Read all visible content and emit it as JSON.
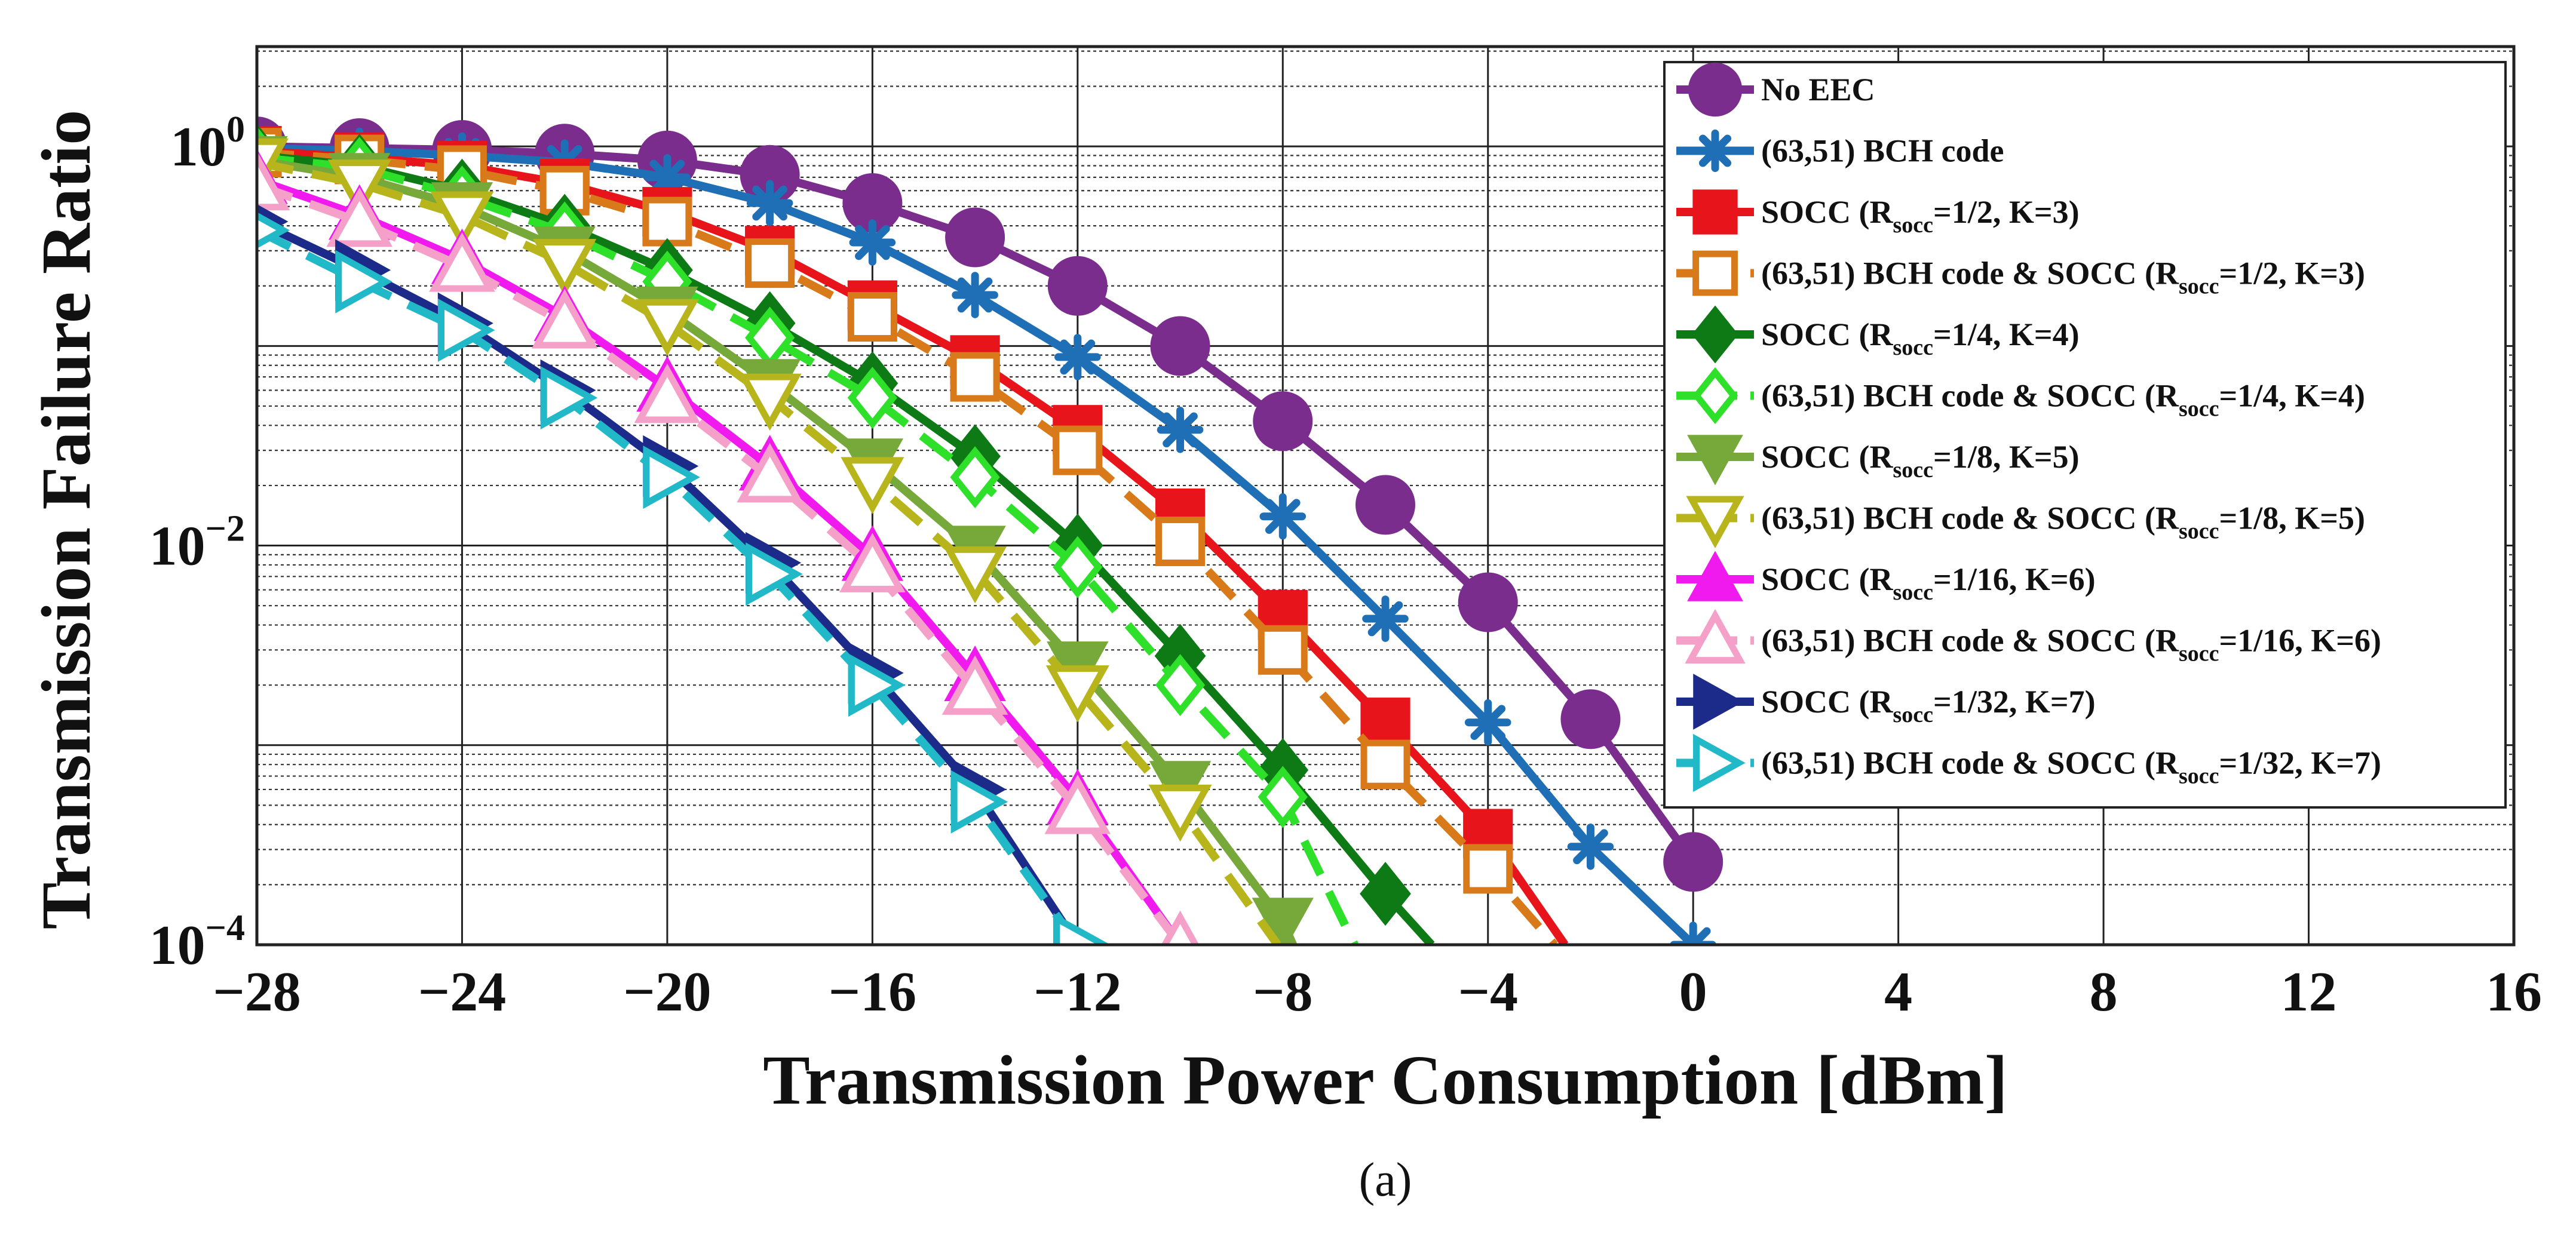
{
  "chart_data": {
    "type": "line",
    "xlabel": "Transmission Power Consumption [dBm]",
    "ylabel": "Transmission Failure Ratio",
    "caption": "(a)",
    "xlim": [
      -28,
      16
    ],
    "ylim_log10": [
      -4,
      0.5
    ],
    "x_ticks": [
      -28,
      -24,
      -20,
      -16,
      -12,
      -8,
      -4,
      0,
      4,
      8,
      12,
      16
    ],
    "x_tick_labels": [
      "−28",
      "−24",
      "−20",
      "−16",
      "−12",
      "−8",
      "−4",
      "0",
      "4",
      "8",
      "12",
      "16"
    ],
    "y_ticks": [
      {
        "base": "10",
        "exp": "0"
      },
      {
        "base": "10",
        "exp": "−2"
      },
      {
        "base": "10",
        "exp": "−4"
      }
    ],
    "grid": true,
    "legend_position": "top-right",
    "series": [
      {
        "name": "No EEC",
        "legend_parts": [
          "No EEC"
        ],
        "color": "#7b2d8e",
        "marker": "circle",
        "dashed": false,
        "x": [
          -28,
          -26,
          -24,
          -22,
          -20,
          -18,
          -16,
          -14,
          -12,
          -10,
          -8,
          -6,
          -4,
          -2,
          0
        ],
        "y": [
          1.0,
          0.98,
          0.96,
          0.92,
          0.85,
          0.72,
          0.52,
          0.35,
          0.2,
          0.1,
          0.042,
          0.016,
          0.0052,
          0.00135,
          0.00026
        ]
      },
      {
        "name": "(63,51) BCH code",
        "legend_parts": [
          "(63,51) BCH code"
        ],
        "color": "#1f6fb6",
        "marker": "asterisk",
        "dashed": false,
        "x": [
          -28,
          -26,
          -24,
          -22,
          -20,
          -18,
          -16,
          -14,
          -12,
          -10,
          -8,
          -6,
          -4,
          -2,
          0
        ],
        "y": [
          0.98,
          0.95,
          0.9,
          0.83,
          0.7,
          0.52,
          0.33,
          0.18,
          0.088,
          0.038,
          0.014,
          0.0043,
          0.0013,
          0.00031,
          0.0001
        ]
      },
      {
        "name": "SOCC (Rsocc=1/2, K=3)",
        "legend_parts": [
          "SOCC (R",
          "socc",
          "=1/2, K=3)"
        ],
        "color": "#e8141b",
        "marker": "square",
        "dashed": false,
        "x": [
          -28,
          -26,
          -24,
          -22,
          -20,
          -18,
          -16,
          -14,
          -12,
          -10,
          -8,
          -6,
          -4,
          -2.5
        ],
        "y": [
          0.95,
          0.88,
          0.8,
          0.65,
          0.47,
          0.3,
          0.16,
          0.085,
          0.038,
          0.0145,
          0.0045,
          0.0013,
          0.00036,
          0.0001
        ]
      },
      {
        "name": "(63,51) BCH code & SOCC (Rsocc=1/2, K=3)",
        "legend_parts": [
          "(63,51) BCH code & SOCC (R",
          "socc",
          "=1/2, K=3)"
        ],
        "color": "#d97a1a",
        "marker": "square-open",
        "dashed": true,
        "x": [
          -28,
          -26,
          -24,
          -22,
          -20,
          -18,
          -16,
          -14,
          -12,
          -10,
          -8,
          -6,
          -4,
          -2.7
        ],
        "y": [
          0.93,
          0.86,
          0.76,
          0.6,
          0.42,
          0.26,
          0.14,
          0.07,
          0.03,
          0.0105,
          0.003,
          0.0008,
          0.00024,
          0.0001
        ]
      },
      {
        "name": "SOCC (Rsocc=1/4, K=4)",
        "legend_parts": [
          "SOCC (R",
          "socc",
          "=1/4, K=4)"
        ],
        "color": "#0d7a16",
        "marker": "diamond",
        "dashed": false,
        "x": [
          -28,
          -26,
          -24,
          -22,
          -20,
          -18,
          -16,
          -14,
          -12,
          -10,
          -8,
          -6,
          -5.1
        ],
        "y": [
          0.9,
          0.8,
          0.6,
          0.4,
          0.24,
          0.13,
          0.065,
          0.028,
          0.01,
          0.0028,
          0.00075,
          0.00018,
          0.0001
        ]
      },
      {
        "name": "(63,51) BCH code & SOCC (Rsocc=1/4, K=4)",
        "legend_parts": [
          "(63,51) BCH code & SOCC (R",
          "socc",
          "=1/4, K=4)"
        ],
        "color": "#2ee02a",
        "marker": "diamond-open",
        "dashed": true,
        "x": [
          -28,
          -26,
          -24,
          -22,
          -20,
          -18,
          -16,
          -14,
          -12,
          -10,
          -8,
          -6.6
        ],
        "y": [
          0.88,
          0.78,
          0.56,
          0.37,
          0.21,
          0.11,
          0.055,
          0.022,
          0.0078,
          0.002,
          0.00055,
          0.0001
        ]
      },
      {
        "name": "SOCC (Rsocc=1/8, K=5)",
        "legend_parts": [
          "SOCC (R",
          "socc",
          "=1/8, K=5)"
        ],
        "color": "#77a83a",
        "marker": "triangle-down",
        "dashed": false,
        "x": [
          -28,
          -26,
          -24,
          -22,
          -20,
          -18,
          -16,
          -14,
          -12,
          -10,
          -8,
          -7.8
        ],
        "y": [
          0.85,
          0.7,
          0.5,
          0.3,
          0.15,
          0.065,
          0.026,
          0.0095,
          0.0025,
          0.00063,
          0.00013,
          0.0001
        ]
      },
      {
        "name": "(63,51) BCH code & SOCC (Rsocc=1/8, K=5)",
        "legend_parts": [
          "(63,51) BCH code & SOCC (R",
          "socc",
          "=1/8, K=5)"
        ],
        "color": "#b7b51b",
        "marker": "triangle-down-open",
        "dashed": true,
        "x": [
          -28,
          -26,
          -24,
          -22,
          -20,
          -18,
          -16,
          -14,
          -12,
          -10,
          -8.1
        ],
        "y": [
          0.83,
          0.65,
          0.45,
          0.26,
          0.13,
          0.055,
          0.021,
          0.0075,
          0.0019,
          0.00048,
          0.0001
        ]
      },
      {
        "name": "SOCC (Rsocc=1/16, K=6)",
        "legend_parts": [
          "SOCC (R",
          "socc",
          "=1/16, K=6)"
        ],
        "color": "#f01aef",
        "marker": "triangle",
        "dashed": false,
        "x": [
          -28,
          -26,
          -24,
          -22,
          -20,
          -18,
          -16,
          -14,
          -12,
          -10
        ],
        "y": [
          0.68,
          0.45,
          0.27,
          0.14,
          0.062,
          0.025,
          0.0088,
          0.0022,
          0.00053,
          0.0001
        ]
      },
      {
        "name": "(63,51) BCH code & SOCC (Rsocc=1/16, K=6)",
        "legend_parts": [
          "(63,51) BCH code & SOCC (R",
          "socc",
          "=1/16, K=6)"
        ],
        "color": "#f5a0c8",
        "marker": "triangle-open",
        "dashed": true,
        "x": [
          -28,
          -26,
          -24,
          -22,
          -20,
          -18,
          -16,
          -14,
          -12,
          -10
        ],
        "y": [
          0.64,
          0.42,
          0.25,
          0.13,
          0.055,
          0.022,
          0.0078,
          0.0019,
          0.00048,
          0.0001
        ]
      },
      {
        "name": "SOCC (Rsocc=1/32, K=7)",
        "legend_parts": [
          "SOCC (R",
          "socc",
          "=1/32, K=7)"
        ],
        "color": "#1c2a8a",
        "marker": "triangle-right",
        "dashed": false,
        "x": [
          -28,
          -26,
          -24,
          -22,
          -20,
          -18,
          -16,
          -14,
          -12
        ],
        "y": [
          0.42,
          0.24,
          0.13,
          0.06,
          0.025,
          0.0082,
          0.0023,
          0.0006,
          0.0001
        ]
      },
      {
        "name": "(63,51) BCH code & SOCC (Rsocc=1/32, K=7)",
        "legend_parts": [
          "(63,51) BCH code & SOCC (R",
          "socc",
          "=1/32, K=7)"
        ],
        "color": "#21b8c8",
        "marker": "triangle-right-open",
        "dashed": true,
        "x": [
          -28,
          -26,
          -24,
          -22,
          -20,
          -18,
          -16,
          -14,
          -12
        ],
        "y": [
          0.38,
          0.21,
          0.12,
          0.055,
          0.022,
          0.0072,
          0.002,
          0.00052,
          0.0001
        ]
      }
    ]
  }
}
